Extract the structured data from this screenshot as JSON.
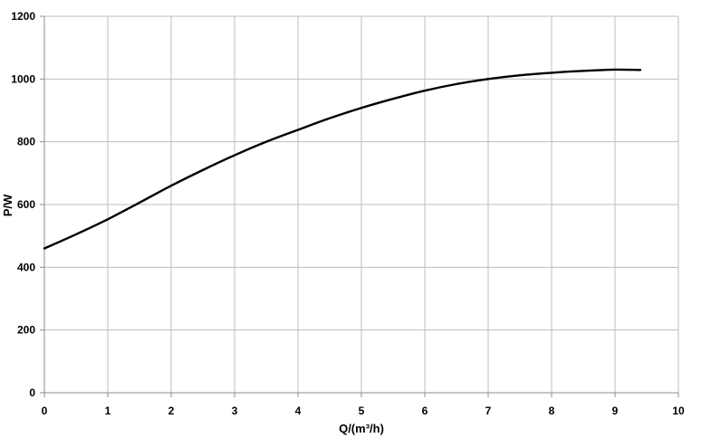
{
  "chart_data": {
    "type": "line",
    "title": "",
    "xlabel": "Q/(m³/h)",
    "ylabel": "P/W",
    "xlim": [
      0,
      10
    ],
    "ylim": [
      0,
      1200
    ],
    "x_ticks": [
      "0",
      "1",
      "2",
      "3",
      "4",
      "5",
      "6",
      "7",
      "8",
      "9",
      "10"
    ],
    "y_ticks": [
      "0",
      "200",
      "400",
      "600",
      "800",
      "1000",
      "1200"
    ],
    "grid": true,
    "legend": "none",
    "series": [
      {
        "color": "#000000",
        "x": [
          0,
          0.5,
          1,
          1.5,
          2,
          2.5,
          3,
          3.5,
          4,
          4.5,
          5,
          5.5,
          6,
          6.5,
          7,
          7.5,
          8,
          8.5,
          9,
          9.4
        ],
        "y": [
          460,
          505,
          553,
          606,
          660,
          710,
          757,
          800,
          838,
          875,
          908,
          937,
          963,
          984,
          1000,
          1012,
          1020,
          1026,
          1030,
          1029
        ]
      }
    ]
  }
}
